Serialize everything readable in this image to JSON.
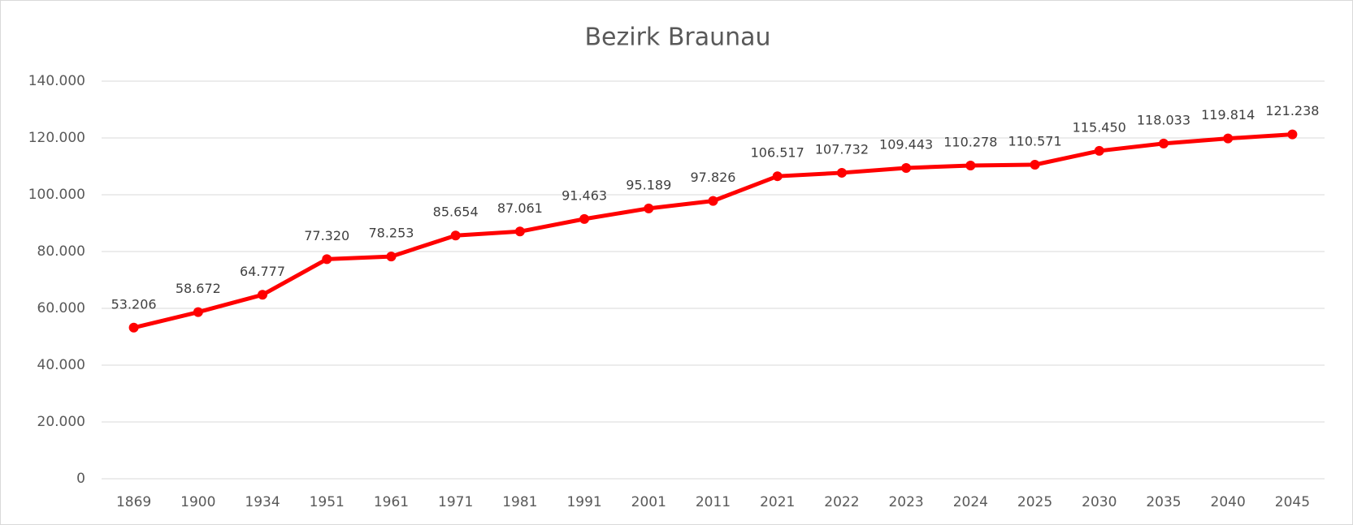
{
  "chart_data": {
    "type": "line",
    "title": "Bezirk Braunau",
    "categories": [
      "1869",
      "1900",
      "1934",
      "1951",
      "1961",
      "1971",
      "1981",
      "1991",
      "2001",
      "2011",
      "2021",
      "2022",
      "2023",
      "2024",
      "2025",
      "2030",
      "2035",
      "2040",
      "2045"
    ],
    "series": [
      {
        "name": "Bezirk Braunau",
        "color": "#ff0000",
        "values": [
          53206,
          58672,
          64777,
          77320,
          78253,
          85654,
          87061,
          91463,
          95189,
          97826,
          106517,
          107732,
          109443,
          110278,
          110571,
          115450,
          118033,
          119814,
          121238
        ],
        "value_labels": [
          "53.206",
          "58.672",
          "64.777",
          "77.320",
          "78.253",
          "85.654",
          "87.061",
          "91.463",
          "95.189",
          "97.826",
          "106.517",
          "107.732",
          "109.443",
          "110.278",
          "110.571",
          "115.450",
          "118.033",
          "119.814",
          "121.238"
        ]
      }
    ],
    "ylim": [
      0,
      140000
    ],
    "yticks": [
      0,
      {
        "value": 20000,
        "label": "20.000"
      },
      {
        "value": 40000,
        "label": "40.000"
      },
      {
        "value": 60000,
        "label": "60.000"
      },
      {
        "value": 80000,
        "label": "80.000"
      },
      {
        "value": 100000,
        "label": "100.000"
      },
      {
        "value": 120000,
        "label": "120.000"
      },
      {
        "value": 140000,
        "label": "140.000"
      }
    ],
    "grid": true
  }
}
